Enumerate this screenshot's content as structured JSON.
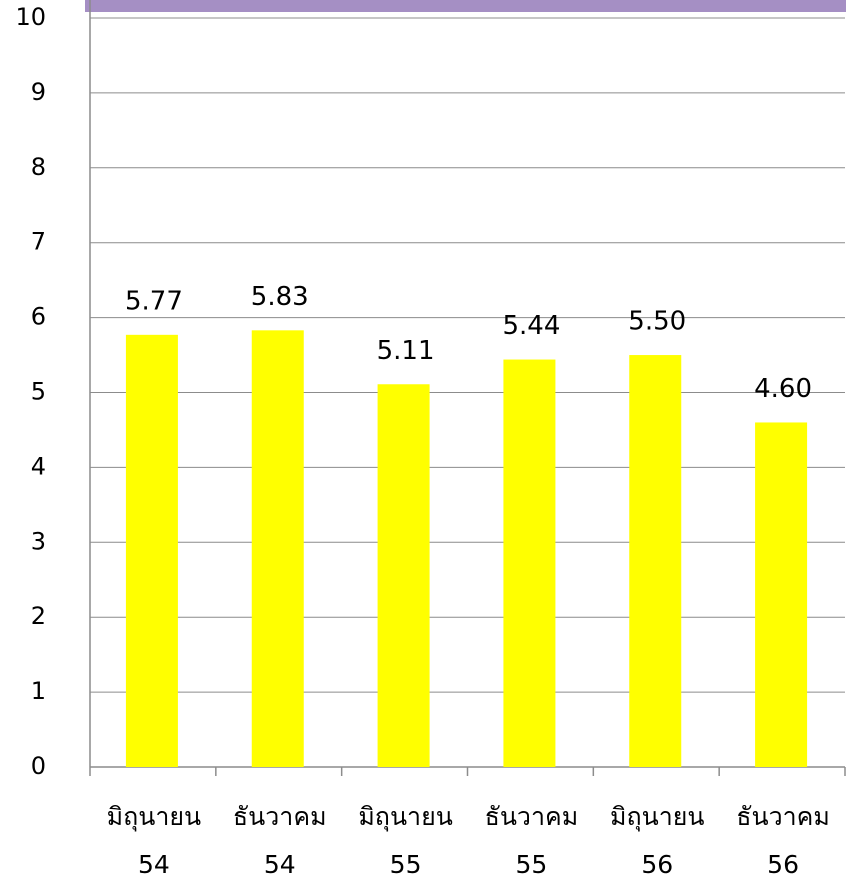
{
  "chart_data": {
    "type": "bar",
    "categories": [
      "มิถุนายน 54",
      "ธันวาคม 54",
      "มิถุนายน 55",
      "ธันวาคม 55",
      "มิถุนายน 56",
      "ธันวาคม 56"
    ],
    "values": [
      5.77,
      5.83,
      5.11,
      5.44,
      5.5,
      4.6
    ],
    "value_labels": [
      "5.77",
      "5.83",
      "5.11",
      "5.44",
      "5.50",
      "4.60"
    ],
    "color": "#ffff00",
    "ylim": [
      0,
      10
    ],
    "yticks": [
      0,
      1,
      2,
      3,
      4,
      5,
      6,
      7,
      8,
      9,
      10
    ],
    "grid": true
  }
}
